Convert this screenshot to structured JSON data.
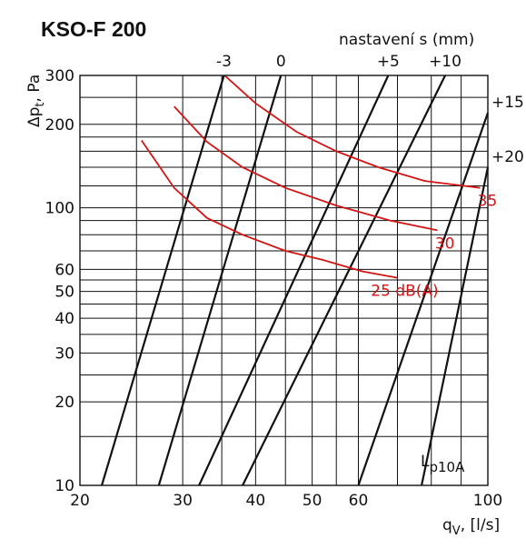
{
  "chart_data": {
    "type": "line",
    "title": "KSO-F 200",
    "xlabel_main": "q",
    "xlabel_sub": "V",
    "xlabel_unit": ", [l/s]",
    "ylabel_main": "Δp",
    "ylabel_sub": "t",
    "ylabel_unit": ", Pa",
    "x_scale": "log",
    "y_scale": "log",
    "xlim": [
      20,
      100
    ],
    "ylim": [
      10,
      300
    ],
    "grid": true,
    "x_ticks": [
      20,
      30,
      40,
      50,
      60,
      100
    ],
    "x_tick_labels": [
      "20",
      "30",
      "40",
      "50",
      "60",
      "100"
    ],
    "x_minor_grid": [
      25,
      35,
      45,
      55,
      70,
      80,
      90
    ],
    "y_ticks": [
      10,
      20,
      30,
      40,
      50,
      60,
      100,
      200,
      300
    ],
    "y_tick_labels": [
      "10",
      "20",
      "30",
      "40",
      "50",
      "60",
      "100",
      "200",
      "300"
    ],
    "y_minor_grid": [
      15,
      25,
      35,
      45,
      55,
      70,
      80,
      90,
      120,
      140,
      160,
      180,
      250
    ],
    "setting_axis_label": "nastavení s (mm)",
    "setting_lines": [
      {
        "label": "-3",
        "points": [
          [
            35.3,
            300
          ],
          [
            21.8,
            10
          ]
        ]
      },
      {
        "label": "0",
        "points": [
          [
            44.2,
            300
          ],
          [
            27.3,
            10
          ]
        ]
      },
      {
        "label": "+5",
        "points": [
          [
            67.5,
            300
          ],
          [
            32.0,
            10
          ]
        ]
      },
      {
        "label": "+10",
        "points": [
          [
            84.5,
            300
          ],
          [
            38.0,
            10
          ]
        ]
      },
      {
        "label": "+15",
        "points": [
          [
            100,
            220
          ],
          [
            60.0,
            10
          ]
        ]
      },
      {
        "label": "+20",
        "points": [
          [
            100,
            140
          ],
          [
            77.0,
            10
          ]
        ]
      }
    ],
    "noise_lines": [
      {
        "label": "25 dB(A)",
        "points": [
          [
            25.5,
            175
          ],
          [
            29,
            118
          ],
          [
            33,
            92
          ],
          [
            38,
            80
          ],
          [
            45,
            70
          ],
          [
            52,
            65
          ],
          [
            61,
            59
          ],
          [
            70,
            56
          ]
        ]
      },
      {
        "label": "30",
        "points": [
          [
            29,
            232
          ],
          [
            33,
            173
          ],
          [
            38,
            140
          ],
          [
            45,
            118
          ],
          [
            55,
            102
          ],
          [
            68,
            90
          ],
          [
            82,
            83
          ]
        ]
      },
      {
        "label": "35",
        "points": [
          [
            35.4,
            300
          ],
          [
            40,
            238
          ],
          [
            47,
            188
          ],
          [
            55,
            160
          ],
          [
            65,
            140
          ],
          [
            78,
            125
          ],
          [
            97,
            118
          ]
        ]
      }
    ],
    "annotation": {
      "main": "L",
      "sub": "p10A"
    }
  }
}
